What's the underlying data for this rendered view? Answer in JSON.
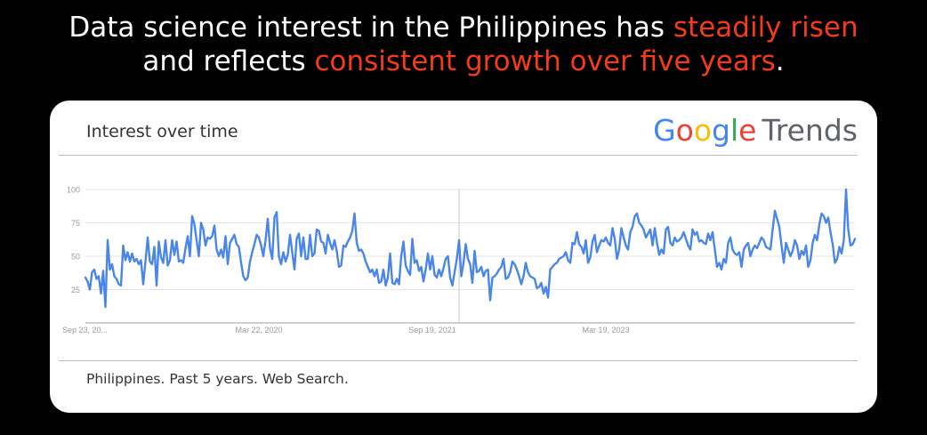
{
  "headline": {
    "line1_prefix": "Data science interest in the Philippines has ",
    "line1_highlight": "steadily risen",
    "line2_prefix": "and reflects ",
    "line2_highlight": "consistent growth over five years",
    "line2_suffix": "."
  },
  "card": {
    "title": "Interest over time",
    "logo": {
      "g1": "G",
      "o1": "o",
      "o2": "o",
      "g2": "g",
      "l": "l",
      "e": "e",
      "trends": "Trends"
    },
    "footer": "Philippines. Past 5 years. Web Search."
  },
  "colors": {
    "line": "#4a86e8",
    "highlight": "#f43b1a",
    "grid": "#e6e6e6"
  },
  "chart_data": {
    "type": "line",
    "title": "",
    "xlabel": "",
    "ylabel": "",
    "ylim": [
      0,
      100
    ],
    "yticks": [
      "25",
      "50",
      "75",
      "100"
    ],
    "xticks": [
      {
        "label": "Sep 23, 20...",
        "index": 0
      },
      {
        "label": "Mar 22, 2020",
        "index": 78
      },
      {
        "label": "Sep 19, 2021",
        "index": 156
      },
      {
        "label": "Mar 19, 2023",
        "index": 234
      }
    ],
    "divider_index": 168,
    "grid": true,
    "series": [
      {
        "values": [
          34,
          31,
          25,
          38,
          40,
          33,
          35,
          22,
          39,
          12,
          62,
          40,
          44,
          35,
          33,
          29,
          28,
          58,
          47,
          53,
          46,
          52,
          46,
          48,
          44,
          47,
          29,
          46,
          64,
          46,
          44,
          57,
          28,
          61,
          49,
          45,
          62,
          43,
          47,
          62,
          51,
          61,
          46,
          47,
          45,
          56,
          65,
          50,
          80,
          74,
          62,
          50,
          75,
          70,
          58,
          64,
          63,
          65,
          73,
          55,
          50,
          55,
          49,
          65,
          44,
          60,
          63,
          66,
          59,
          57,
          45,
          35,
          32,
          34,
          46,
          53,
          59,
          66,
          64,
          58,
          50,
          62,
          78,
          56,
          48,
          79,
          83,
          50,
          44,
          53,
          46,
          51,
          66,
          53,
          40,
          63,
          67,
          50,
          64,
          48,
          48,
          66,
          50,
          52,
          70,
          69,
          61,
          60,
          52,
          66,
          60,
          55,
          62,
          54,
          42,
          43,
          58,
          57,
          61,
          64,
          69,
          82,
          60,
          54,
          55,
          52,
          46,
          42,
          38,
          40,
          35,
          40,
          30,
          31,
          40,
          28,
          34,
          52,
          30,
          29,
          33,
          29,
          50,
          61,
          43,
          39,
          36,
          63,
          45,
          47,
          39,
          42,
          31,
          40,
          52,
          40,
          50,
          36,
          34,
          40,
          35,
          41,
          48,
          50,
          34,
          28,
          38,
          48,
          62,
          35,
          45,
          59,
          48,
          44,
          30,
          54,
          38,
          39,
          42,
          35,
          39,
          40,
          17,
          34,
          35,
          37,
          40,
          42,
          48,
          33,
          34,
          38,
          46,
          44,
          40,
          35,
          29,
          35,
          45,
          38,
          35,
          34,
          33,
          26,
          27,
          30,
          22,
          27,
          19,
          40,
          42,
          44,
          45,
          48,
          49,
          50,
          53,
          47,
          45,
          60,
          59,
          68,
          59,
          57,
          52,
          62,
          45,
          49,
          61,
          66,
          53,
          58,
          62,
          61,
          64,
          60,
          58,
          71,
          63,
          48,
          55,
          71,
          64,
          58,
          55,
          68,
          72,
          80,
          82,
          75,
          73,
          70,
          64,
          67,
          70,
          58,
          71,
          60,
          51,
          55,
          52,
          70,
          72,
          60,
          58,
          64,
          61,
          62,
          64,
          68,
          63,
          58,
          55,
          70,
          66,
          68,
          61,
          62,
          60,
          59,
          67,
          62,
          68,
          55,
          42,
          45,
          40,
          48,
          45,
          60,
          64,
          55,
          52,
          51,
          53,
          42,
          55,
          58,
          60,
          50,
          55,
          58,
          56,
          60,
          64,
          62,
          57,
          56,
          55,
          70,
          84,
          78,
          72,
          58,
          45,
          60,
          55,
          50,
          54,
          62,
          58,
          48,
          54,
          51,
          58,
          42,
          47,
          60,
          66,
          62,
          74,
          82,
          80,
          75,
          79,
          68,
          59,
          45,
          48,
          57,
          52,
          62,
          100,
          70,
          58,
          59,
          63
        ]
      }
    ]
  }
}
